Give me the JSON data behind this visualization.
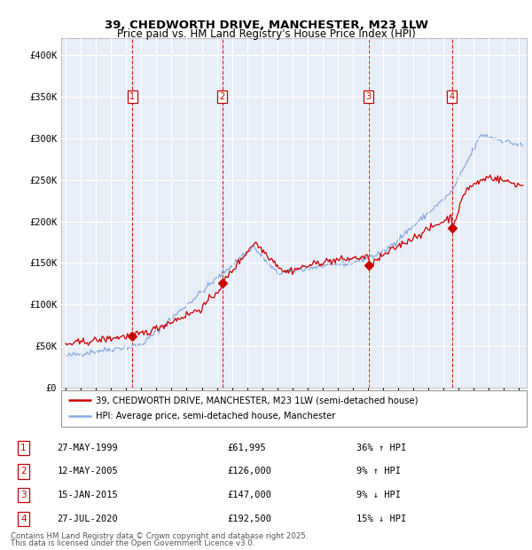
{
  "title": "39, CHEDWORTH DRIVE, MANCHESTER, M23 1LW",
  "subtitle": "Price paid vs. HM Land Registry's House Price Index (HPI)",
  "ylim": [
    0,
    420000
  ],
  "yticks": [
    0,
    50000,
    100000,
    150000,
    200000,
    250000,
    300000,
    350000,
    400000
  ],
  "ytick_labels": [
    "£0",
    "£50K",
    "£100K",
    "£150K",
    "£200K",
    "£250K",
    "£300K",
    "£350K",
    "£400K"
  ],
  "xlim_start": 1994.7,
  "xlim_end": 2025.5,
  "legend_line1": "39, CHEDWORTH DRIVE, MANCHESTER, M23 1LW (semi-detached house)",
  "legend_line2": "HPI: Average price, semi-detached house, Manchester",
  "red_color": "#cc0000",
  "blue_color": "#88aadd",
  "transaction_markers": [
    {
      "num": 1,
      "date": "27-MAY-1999",
      "price": 61995,
      "year": 1999.4,
      "pct": "36%",
      "dir": "↑"
    },
    {
      "num": 2,
      "date": "12-MAY-2005",
      "price": 126000,
      "year": 2005.37,
      "pct": "9%",
      "dir": "↑"
    },
    {
      "num": 3,
      "date": "15-JAN-2015",
      "price": 147000,
      "year": 2015.04,
      "pct": "9%",
      "dir": "↓"
    },
    {
      "num": 4,
      "date": "27-JUL-2020",
      "price": 192500,
      "year": 2020.57,
      "pct": "15%",
      "dir": "↓"
    }
  ],
  "footer_line1": "Contains HM Land Registry data © Crown copyright and database right 2025.",
  "footer_line2": "This data is licensed under the Open Government Licence v3.0.",
  "plot_bg_color": "#e8eef8"
}
